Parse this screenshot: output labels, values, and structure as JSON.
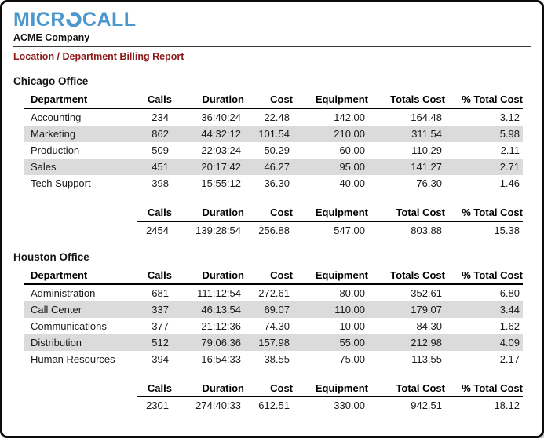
{
  "logo": {
    "text_before": "MICR",
    "text_after": "CALL",
    "color": "#4b97ce"
  },
  "header": {
    "company": "ACME Company",
    "report_title": "Location / Department Billing Report",
    "report_title_color": "#8b1a1a"
  },
  "table": {
    "columns": [
      "Department",
      "Calls",
      "Duration",
      "Cost",
      "Equipment",
      "Totals Cost",
      "% Total Cost"
    ],
    "totals_columns": [
      "Calls",
      "Duration",
      "Cost",
      "Equipment",
      "Total Cost",
      "% Total Cost"
    ],
    "stripe_color": "#dbdbdb"
  },
  "sections": [
    {
      "office": "Chicago Office",
      "rows": [
        [
          "Accounting",
          "234",
          "36:40:24",
          "22.48",
          "142.00",
          "164.48",
          "3.12"
        ],
        [
          "Marketing",
          "862",
          "44:32:12",
          "101.54",
          "210.00",
          "311.54",
          "5.98"
        ],
        [
          "Production",
          "509",
          "22:03:24",
          "50.29",
          "60.00",
          "110.29",
          "2.11"
        ],
        [
          "Sales",
          "451",
          "20:17:42",
          "46.27",
          "95.00",
          "141.27",
          "2.71"
        ],
        [
          "Tech Support",
          "398",
          "15:55:12",
          "36.30",
          "40.00",
          "76.30",
          "1.46"
        ]
      ],
      "totals": [
        "2454",
        "139:28:54",
        "256.88",
        "547.00",
        "803.88",
        "15.38"
      ]
    },
    {
      "office": "Houston Office",
      "rows": [
        [
          "Administration",
          "681",
          "111:12:54",
          "272.61",
          "80.00",
          "352.61",
          "6.80"
        ],
        [
          "Call Center",
          "337",
          "46:13:54",
          "69.07",
          "110.00",
          "179.07",
          "3.44"
        ],
        [
          "Communications",
          "377",
          "21:12:36",
          "74.30",
          "10.00",
          "84.30",
          "1.62"
        ],
        [
          "Distribution",
          "512",
          "79:06:36",
          "157.98",
          "55.00",
          "212.98",
          "4.09"
        ],
        [
          "Human Resources",
          "394",
          "16:54:33",
          "38.55",
          "75.00",
          "113.55",
          "2.17"
        ]
      ],
      "totals": [
        "2301",
        "274:40:33",
        "612.51",
        "330.00",
        "942.51",
        "18.12"
      ]
    }
  ]
}
